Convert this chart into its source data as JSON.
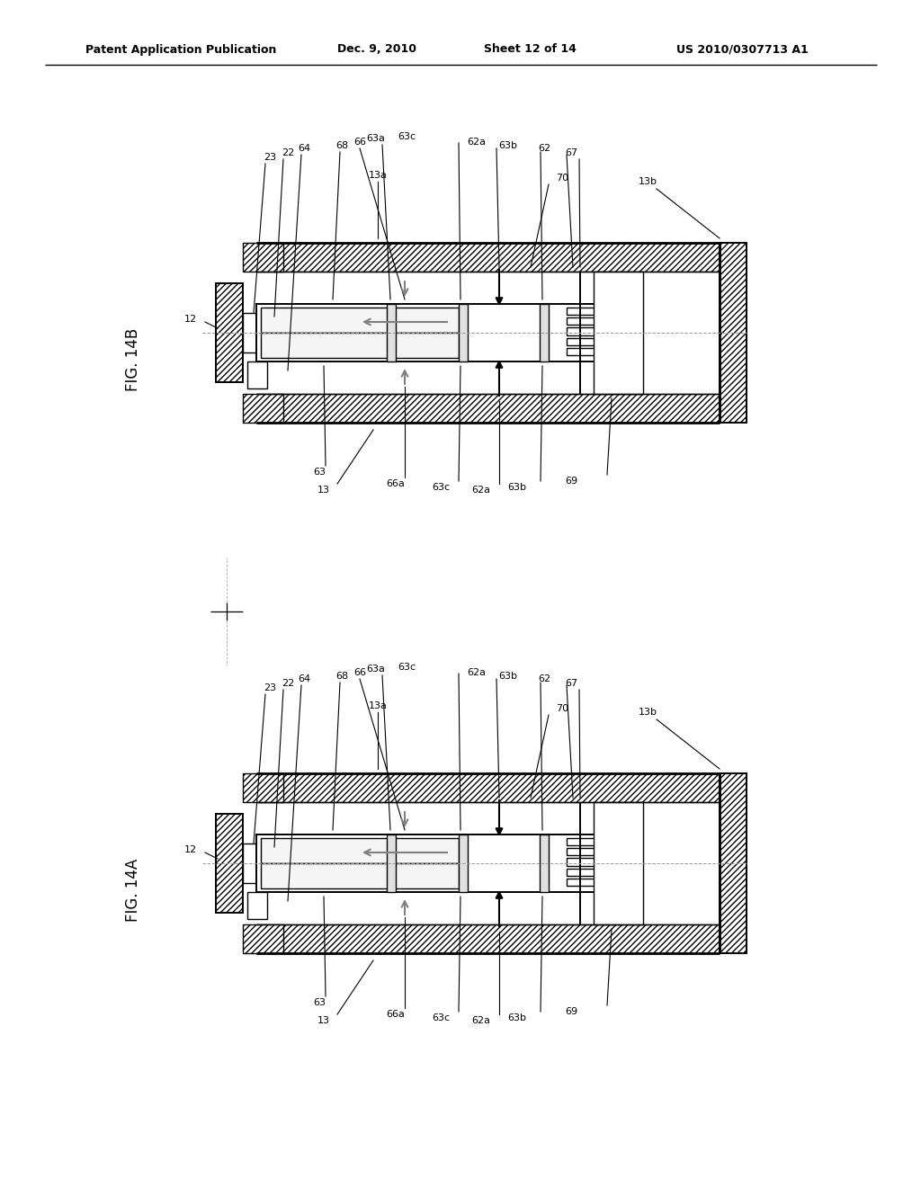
{
  "background": "#ffffff",
  "line_color": "#000000",
  "header_left": "Patent Application Publication",
  "header_date": "Dec. 9, 2010",
  "header_sheet": "Sheet 12 of 14",
  "header_patent": "US 2010/0307713 A1",
  "fig_a_label": "FIG. 14A",
  "fig_b_label": "FIG. 14B"
}
